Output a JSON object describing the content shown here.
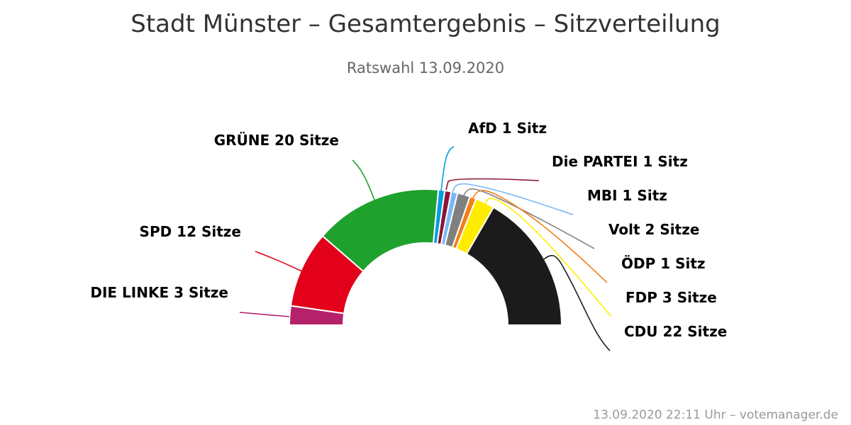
{
  "title": "Stadt Münster – Gesamtergebnis – Sitzverteilung",
  "subtitle": "Ratswahl 13.09.2020",
  "footer": "13.09.2020 22:11 Uhr – votemanager.de",
  "chart_data": {
    "type": "pie",
    "variant": "semi-donut",
    "slices": [
      {
        "name": "DIE LINKE",
        "value": 3,
        "label": "DIE LINKE 3 Sitze",
        "color": "#b5216a"
      },
      {
        "name": "SPD",
        "value": 12,
        "label": "SPD 12 Sitze",
        "color": "#e2001a"
      },
      {
        "name": "GRÜNE",
        "value": 20,
        "label": "GRÜNE 20 Sitze",
        "color": "#1fa12e"
      },
      {
        "name": "AfD",
        "value": 1,
        "label": "AfD 1 Sitz",
        "color": "#009ee0"
      },
      {
        "name": "Die PARTEI",
        "value": 1,
        "label": "Die PARTEI 1 Sitz",
        "color": "#8a1538"
      },
      {
        "name": "MBI",
        "value": 1,
        "label": "MBI 1 Sitz",
        "color": "#7ab8f5"
      },
      {
        "name": "Volt",
        "value": 2,
        "label": "Volt 2 Sitze",
        "color": "#808080"
      },
      {
        "name": "ÖDP",
        "value": 1,
        "label": "ÖDP 1 Sitz",
        "color": "#f07f1a"
      },
      {
        "name": "FDP",
        "value": 3,
        "label": "FDP 3 Sitze",
        "color": "#ffed00"
      },
      {
        "name": "CDU",
        "value": 22,
        "label": "CDU 22 Sitze",
        "color": "#1b1b1b"
      }
    ]
  }
}
